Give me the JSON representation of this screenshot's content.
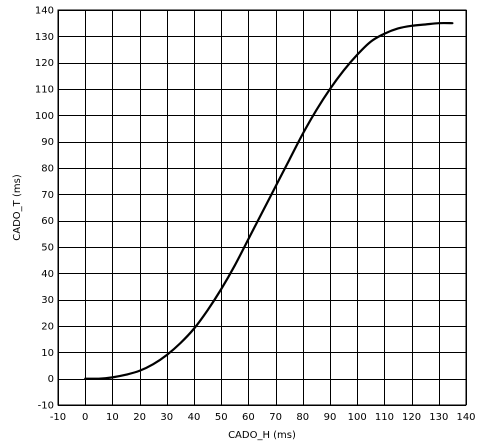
{
  "chart_data": {
    "type": "line",
    "title": "",
    "xlabel": "CADO_H (ms)",
    "ylabel": "CADO_T (ms)",
    "xlim": [
      -10,
      140
    ],
    "ylim": [
      -10,
      140
    ],
    "xticks": [
      -10,
      0,
      10,
      20,
      30,
      40,
      50,
      60,
      70,
      80,
      90,
      100,
      110,
      120,
      130,
      140
    ],
    "yticks": [
      -10,
      0,
      10,
      20,
      30,
      40,
      50,
      60,
      70,
      80,
      90,
      100,
      110,
      120,
      130,
      140
    ],
    "grid": true,
    "line_color": "#000000",
    "series": [
      {
        "x": [
          0,
          5,
          10,
          15,
          20,
          25,
          30,
          35,
          40,
          45,
          50,
          55,
          60,
          65,
          70,
          75,
          80,
          85,
          90,
          95,
          100,
          105,
          110,
          115,
          120,
          125,
          130,
          135
        ],
        "values": [
          0,
          0,
          0.5,
          1.5,
          3,
          5.5,
          9,
          13.5,
          19,
          26,
          34,
          43,
          53,
          63,
          73,
          83,
          93,
          102,
          110,
          117,
          123,
          128,
          131,
          133,
          134,
          134.5,
          135,
          135
        ]
      }
    ]
  }
}
